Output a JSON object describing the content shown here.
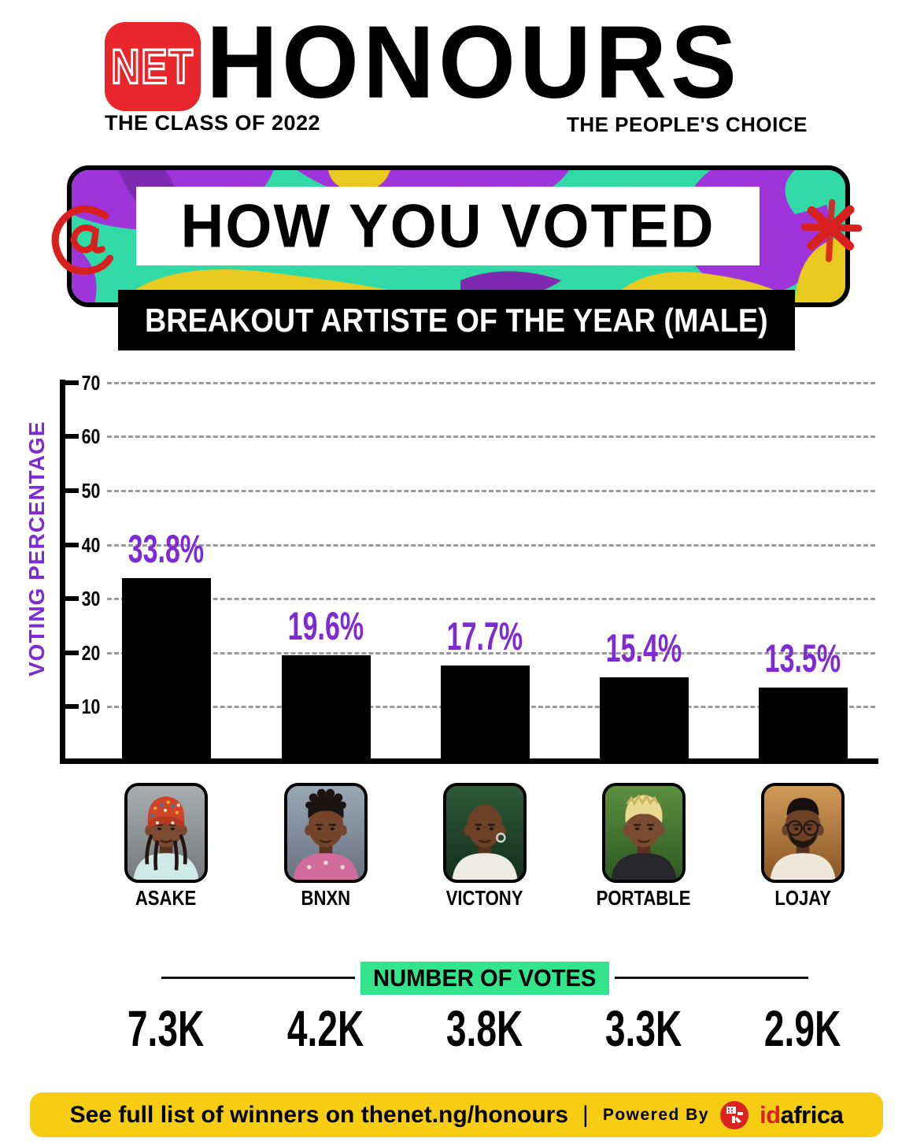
{
  "header": {
    "logo_text": "NET",
    "title": "HONOURS",
    "subtitle_left": "THE CLASS OF 2022",
    "subtitle_right": "THE PEOPLE'S CHOICE"
  },
  "banner": {
    "title": "HOW YOU VOTED",
    "category": "BREAKOUT ARTISTE OF THE YEAR (MALE)"
  },
  "chart_data": {
    "type": "bar",
    "title": "HOW YOU VOTED — BREAKOUT ARTISTE OF THE YEAR (MALE)",
    "ylabel": "VOTING PERCENTAGE",
    "xlabel": "",
    "yticks": [
      10,
      20,
      30,
      40,
      50,
      60,
      70
    ],
    "ylim": [
      0,
      73
    ],
    "grid": "horizontal-dashed",
    "legend": "none",
    "categories": [
      "ASAKE",
      "BNXN",
      "VICTONY",
      "PORTABLE",
      "LOJAY"
    ],
    "values": [
      33.8,
      19.6,
      17.7,
      15.4,
      13.5
    ],
    "value_labels": [
      "33.8%",
      "19.6%",
      "17.7%",
      "15.4%",
      "13.5%"
    ],
    "votes": [
      "7.3K",
      "4.2K",
      "3.8K",
      "3.3K",
      "2.9K"
    ],
    "bar_color": "#000000",
    "label_color": "#7e2bd3"
  },
  "votes_section": {
    "title": "NUMBER OF VOTES"
  },
  "footer": {
    "text": "See full list of winners on thenet.ng/honours",
    "separator": "|",
    "powered_by": "Powered By",
    "brand_id": "id",
    "brand_africa": "africa"
  },
  "colors": {
    "accent_purple": "#7e2bd3",
    "accent_green": "#32e48c",
    "footer_yellow": "#f6cd13",
    "net_red": "#e8262c",
    "doodle_red": "#d8201f",
    "idafrica_red": "#d8231f",
    "banner_teal": "#2fd9a2",
    "banner_purple": "#9b32d9",
    "banner_yellow": "#e8c81f",
    "bar_black": "#000000"
  }
}
